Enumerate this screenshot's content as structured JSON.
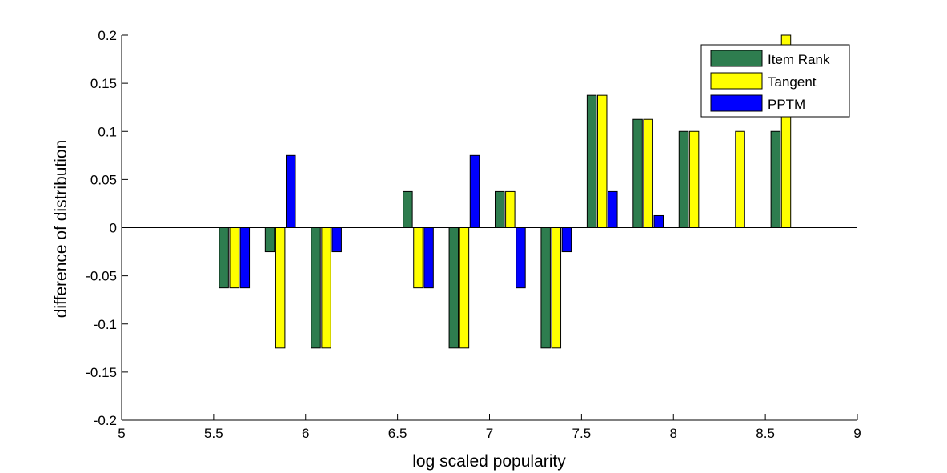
{
  "chart_data": {
    "type": "bar",
    "title": "",
    "xlabel": "log scaled popularity",
    "ylabel": "difference of distribution",
    "xlim": [
      5,
      9
    ],
    "ylim": [
      -0.2,
      0.2
    ],
    "xticks": [
      "5",
      "5.5",
      "6",
      "6.5",
      "7",
      "7.5",
      "8",
      "8.5",
      "9"
    ],
    "xtick_values": [
      5,
      5.5,
      6,
      6.5,
      7,
      7.5,
      8,
      8.5,
      9
    ],
    "yticks": [
      "-0.2",
      "-0.15",
      "-0.1",
      "-0.05",
      "0",
      "0.05",
      "0.1",
      "0.15",
      "0.2"
    ],
    "ytick_values": [
      -0.2,
      -0.15,
      -0.1,
      -0.05,
      0,
      0.05,
      0.1,
      0.15,
      0.2
    ],
    "grid": false,
    "legend_position": "top-right",
    "x": [
      5.625,
      5.875,
      6.125,
      6.375,
      6.625,
      6.875,
      7.125,
      7.375,
      7.625,
      7.875,
      8.125,
      8.375,
      8.625
    ],
    "series": [
      {
        "name": "Item Rank",
        "color": "#2e7d4f",
        "values": [
          -0.0625,
          -0.025,
          -0.125,
          0,
          0.0375,
          -0.125,
          0.0375,
          -0.125,
          0.1375,
          0.1125,
          0.1,
          0,
          0.1
        ]
      },
      {
        "name": "Tangent",
        "color": "#ffff00",
        "values": [
          -0.0625,
          -0.125,
          -0.125,
          0,
          -0.0625,
          -0.125,
          0.0375,
          -0.125,
          0.1375,
          0.1125,
          0.1,
          0.1,
          0.2
        ]
      },
      {
        "name": "PPTM",
        "color": "#0000ff",
        "values": [
          -0.0625,
          0.075,
          -0.025,
          0,
          -0.0625,
          0.075,
          -0.0625,
          -0.025,
          0.0375,
          0.0125,
          0,
          0,
          0
        ]
      }
    ]
  }
}
